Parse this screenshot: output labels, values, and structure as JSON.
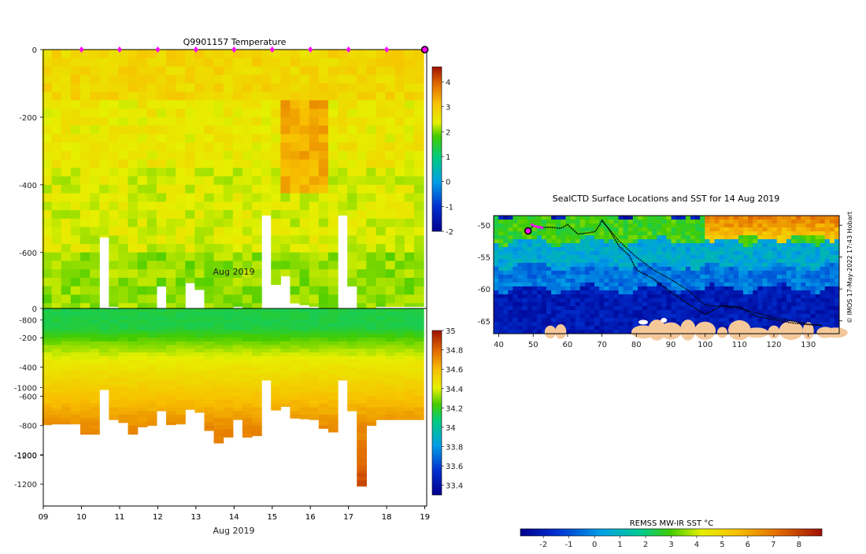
{
  "chart_data": [
    {
      "type": "heatmap",
      "title": "Q9901157  Temperature",
      "xlabel": "Aug 2019",
      "ylabel": "",
      "x_ticks": [
        "09",
        "10",
        "11",
        "12",
        "13",
        "14",
        "15",
        "16",
        "17",
        "18",
        "19"
      ],
      "xlim": [
        9,
        19.05
      ],
      "y_ticks": [
        0,
        -200,
        -400,
        -600,
        -800,
        -1000,
        -1200
      ],
      "y_tick_labels": [
        "0",
        "-200",
        "-400",
        "-600",
        "-800",
        "-1000",
        "-1200"
      ],
      "ylim": [
        -1350,
        0
      ],
      "colorbar": {
        "min": -2,
        "max": 4.6,
        "ticks": [
          -2,
          -1,
          0,
          1,
          2,
          3,
          4
        ],
        "tick_labels": [
          "-2",
          "-1",
          "0",
          "1",
          "2",
          "3",
          "4"
        ]
      },
      "profile_dates": [
        9.1,
        9.35,
        9.6,
        9.85,
        10.1,
        10.35,
        10.6,
        10.85,
        11.1,
        11.35,
        11.6,
        11.85,
        12.1,
        12.35,
        12.6,
        12.85,
        13.1,
        13.35,
        13.6,
        13.85,
        14.1,
        14.35,
        14.6,
        14.85,
        15.1,
        15.35,
        15.6,
        15.85,
        16.1,
        16.35,
        16.6,
        16.85,
        17.1,
        17.35,
        17.6,
        17.85,
        18.1,
        18.35,
        18.6,
        18.85
      ],
      "profile_max_depth": [
        795,
        790,
        790,
        790,
        860,
        860,
        555,
        760,
        780,
        860,
        810,
        800,
        700,
        795,
        790,
        690,
        710,
        835,
        920,
        880,
        760,
        880,
        870,
        490,
        695,
        670,
        750,
        755,
        760,
        820,
        845,
        490,
        700,
        1215,
        800,
        760,
        760,
        760,
        760,
        760
      ],
      "temperature_layers": [
        {
          "depth_range": [
            0,
            150
          ],
          "temperature": 2.8
        },
        {
          "depth_range": [
            150,
            350
          ],
          "temperature": 2.5
        },
        {
          "depth_range": [
            350,
            600
          ],
          "temperature": 2.3
        },
        {
          "depth_range": [
            600,
            1300
          ],
          "temperature": 2.0
        }
      ],
      "warm_core": {
        "dates": [
          15.2,
          16.4
        ],
        "depth_range": [
          150,
          400
        ],
        "temperature": 3.3
      },
      "surface_marker_dates": [
        10,
        11,
        12,
        13,
        14,
        15,
        16,
        17,
        18
      ],
      "current_marker_date": 19
    },
    {
      "type": "heatmap",
      "title": "",
      "xlabel": "Aug 2019",
      "x_ticks": [
        "09",
        "10",
        "11",
        "12",
        "13",
        "14",
        "15",
        "16",
        "17",
        "18",
        "19"
      ],
      "xlim": [
        9,
        19.05
      ],
      "y_ticks": [
        0,
        -200,
        -400,
        -600,
        -800,
        -1000,
        -1200
      ],
      "y_tick_labels": [
        "0",
        "-200",
        "-400",
        "-600",
        "-800",
        "-1000",
        "-1200"
      ],
      "ylim": [
        -1350,
        0
      ],
      "colorbar": {
        "min": 33.3,
        "max": 35.0,
        "ticks": [
          33.4,
          33.6,
          33.8,
          34.0,
          34.2,
          34.4,
          34.6,
          34.8,
          35.0
        ],
        "tick_labels": [
          "33.4",
          "33.6",
          "33.8",
          "34",
          "34.2",
          "34.4",
          "34.6",
          "34.8",
          "35"
        ]
      },
      "salinity_profile": [
        {
          "depth": 0,
          "salinity": 34.15
        },
        {
          "depth": 120,
          "salinity": 34.15
        },
        {
          "depth": 220,
          "salinity": 34.3
        },
        {
          "depth": 350,
          "salinity": 34.45
        },
        {
          "depth": 500,
          "salinity": 34.55
        },
        {
          "depth": 650,
          "salinity": 34.65
        },
        {
          "depth": 800,
          "salinity": 34.75
        },
        {
          "depth": 1000,
          "salinity": 34.82
        },
        {
          "depth": 1220,
          "salinity": 34.9
        }
      ]
    },
    {
      "type": "map",
      "title": "SealCTD Surface Locations and SST for 14 Aug 2019",
      "xlabel": "",
      "x_ticks": [
        40,
        50,
        60,
        70,
        80,
        90,
        100,
        110,
        120,
        130
      ],
      "xlim": [
        38.5,
        139
      ],
      "y_ticks": [
        -50,
        -55,
        -60,
        -65
      ],
      "y_tick_labels": [
        "-50",
        "-55",
        "-60",
        "-65"
      ],
      "ylim": [
        -67,
        -48.5
      ],
      "track_lon": [
        48.5,
        50,
        52,
        55,
        58,
        60,
        63,
        66,
        68,
        69.5,
        70,
        72,
        75,
        78,
        80,
        85,
        90,
        95,
        100,
        105,
        110,
        115,
        120,
        125,
        130,
        134
      ],
      "track_lat": [
        -50.9,
        -50.1,
        -50.4,
        -50.3,
        -50.5,
        -49.9,
        -51.4,
        -51.2,
        -51.0,
        -49.8,
        -49.2,
        -50.6,
        -53.3,
        -54.8,
        -57.0,
        -58.4,
        -60.5,
        -62.3,
        -64.0,
        -62.6,
        -62.8,
        -64.3,
        -64.8,
        -65.3,
        -65.6,
        -65.7
      ],
      "return_track_lon": [
        70,
        75,
        80,
        85,
        90,
        95,
        100,
        110,
        120,
        130,
        134
      ],
      "return_track_lat": [
        -49.3,
        -52.5,
        -55.0,
        -57.0,
        -58.5,
        -60.2,
        -62.5,
        -63.0,
        -64.5,
        -65.5,
        -65.7
      ],
      "current_position": {
        "lon": 48.5,
        "lat": -50.9
      },
      "recent_positions_lon": [
        49.6,
        50.2,
        50.8,
        51.4,
        52.0,
        52.6
      ],
      "recent_positions_lat": [
        -49.9,
        -50.1,
        -50.2,
        -50.3,
        -50.3,
        -50.4
      ],
      "credit": "© IMOS 17-May-2022 17:43 Hobart",
      "colorbar": {
        "label": "REMSS MW-IR SST °C",
        "min": -2.9,
        "max": 8.9,
        "ticks": [
          -2,
          -1,
          0,
          1,
          2,
          3,
          4,
          5,
          6,
          7,
          8
        ],
        "tick_labels": [
          "-2",
          "-1",
          "0",
          "1",
          "2",
          "3",
          "4",
          "5",
          "6",
          "7",
          "8"
        ]
      },
      "sst_zones": [
        {
          "lat_range": [
            -48.5,
            -52.5
          ],
          "sst": 3.5
        },
        {
          "lat_range": [
            -52.5,
            -56.5
          ],
          "sst": 1.0
        },
        {
          "lat_range": [
            -56.5,
            -60.0
          ],
          "sst": 0.0
        },
        {
          "lat_range": [
            -60.0,
            -67.0
          ],
          "sst": -1.9
        }
      ],
      "warm_region": {
        "lon_range": [
          100,
          139
        ],
        "lat_range": [
          -48.5,
          -52
        ],
        "sst": 7.5
      }
    }
  ]
}
